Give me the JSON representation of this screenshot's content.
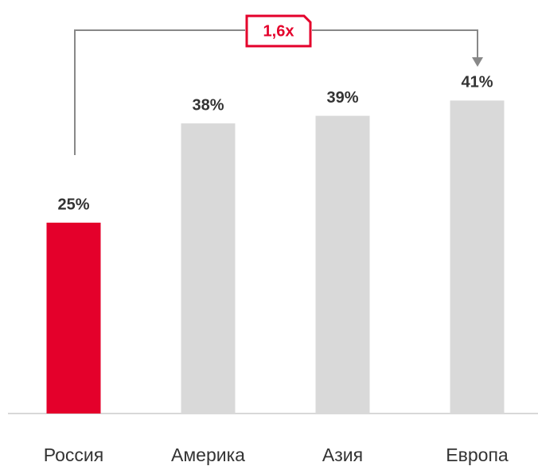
{
  "chart_data": {
    "type": "bar",
    "categories": [
      "Россия",
      "Америка",
      "Азия",
      "Европа"
    ],
    "values": [
      25,
      38,
      39,
      41
    ],
    "value_labels": [
      "25%",
      "38%",
      "39%",
      "41%"
    ],
    "colors": [
      "#e4002b",
      "#d9d9d9",
      "#d9d9d9",
      "#d9d9d9"
    ],
    "ylim": [
      0,
      50
    ],
    "annotation": "1,6x"
  }
}
